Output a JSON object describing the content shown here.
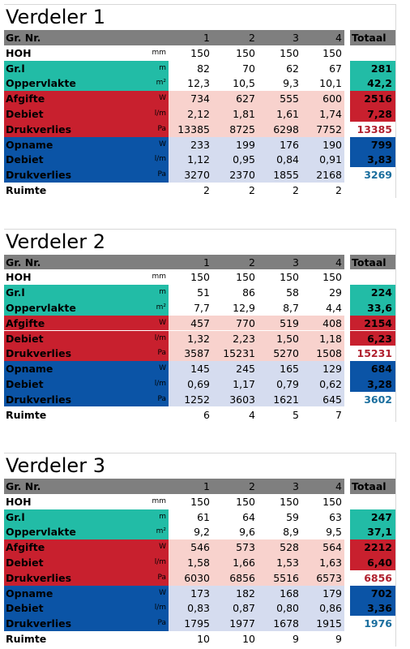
{
  "tables": [
    {
      "title": "Verdeler 1",
      "header": [
        "Gr. Nr.",
        "1",
        "2",
        "3",
        "4",
        "Totaal"
      ],
      "rows": [
        {
          "label": "HOH",
          "unit": "mm",
          "values": [
            "150",
            "150",
            "150",
            "150"
          ]
        },
        {
          "label": "Gr.l",
          "unit": "m",
          "values": [
            "82",
            "70",
            "62",
            "67"
          ],
          "total": "281"
        },
        {
          "label": "Oppervlakte",
          "unit": "m²",
          "values": [
            "12,3",
            "10,5",
            "9,3",
            "10,1"
          ],
          "total": "42,2"
        },
        {
          "label": "Afgifte",
          "unit": "W",
          "values": [
            "734",
            "627",
            "555",
            "600"
          ],
          "total": "2516"
        },
        {
          "label": "Debiet",
          "unit": "l/m",
          "values": [
            "2,12",
            "1,81",
            "1,61",
            "1,74"
          ],
          "total": "7,28"
        },
        {
          "label": "Drukverlies",
          "unit": "Pa",
          "values": [
            "13385",
            "8725",
            "6298",
            "7752"
          ],
          "total": "13385"
        },
        {
          "label": "Opname",
          "unit": "W",
          "values": [
            "233",
            "199",
            "176",
            "190"
          ],
          "total": "799"
        },
        {
          "label": "Debiet",
          "unit": "l/m",
          "values": [
            "1,12",
            "0,95",
            "0,84",
            "0,91"
          ],
          "total": "3,83"
        },
        {
          "label": "Drukverlies",
          "unit": "Pa",
          "values": [
            "3270",
            "2370",
            "1855",
            "2168"
          ],
          "total": "3269"
        },
        {
          "label": "Ruimte",
          "values": [
            "2",
            "2",
            "2",
            "2"
          ]
        }
      ]
    },
    {
      "title": "Verdeler 2",
      "header": [
        "Gr. Nr.",
        "1",
        "2",
        "3",
        "4",
        "Totaal"
      ],
      "rows": [
        {
          "label": "HOH",
          "unit": "mm",
          "values": [
            "150",
            "150",
            "150",
            "150"
          ]
        },
        {
          "label": "Gr.l",
          "unit": "m",
          "values": [
            "51",
            "86",
            "58",
            "29"
          ],
          "total": "224"
        },
        {
          "label": "Oppervlakte",
          "unit": "m²",
          "values": [
            "7,7",
            "12,9",
            "8,7",
            "4,4"
          ],
          "total": "33,6"
        },
        {
          "label": "Afgifte",
          "unit": "W",
          "values": [
            "457",
            "770",
            "519",
            "408"
          ],
          "total": "2154"
        },
        {
          "label": "Debiet",
          "unit": "l/m",
          "values": [
            "1,32",
            "2,23",
            "1,50",
            "1,18"
          ],
          "total": "6,23"
        },
        {
          "label": "Drukverlies",
          "unit": "Pa",
          "values": [
            "3587",
            "15231",
            "5270",
            "1508"
          ],
          "total": "15231"
        },
        {
          "label": "Opname",
          "unit": "W",
          "values": [
            "145",
            "245",
            "165",
            "129"
          ],
          "total": "684"
        },
        {
          "label": "Debiet",
          "unit": "l/m",
          "values": [
            "0,69",
            "1,17",
            "0,79",
            "0,62"
          ],
          "total": "3,28"
        },
        {
          "label": "Drukverlies",
          "unit": "Pa",
          "values": [
            "1252",
            "3603",
            "1621",
            "645"
          ],
          "total": "3602"
        },
        {
          "label": "Ruimte",
          "values": [
            "6",
            "4",
            "5",
            "7"
          ]
        }
      ]
    },
    {
      "title": "Verdeler 3",
      "header": [
        "Gr. Nr.",
        "1",
        "2",
        "3",
        "4",
        "Totaal"
      ],
      "rows": [
        {
          "label": "HOH",
          "unit": "mm",
          "values": [
            "150",
            "150",
            "150",
            "150"
          ]
        },
        {
          "label": "Gr.l",
          "unit": "m",
          "values": [
            "61",
            "64",
            "59",
            "63"
          ],
          "total": "247"
        },
        {
          "label": "Oppervlakte",
          "unit": "m²",
          "values": [
            "9,2",
            "9,6",
            "8,9",
            "9,5"
          ],
          "total": "37,1"
        },
        {
          "label": "Afgifte",
          "unit": "W",
          "values": [
            "546",
            "573",
            "528",
            "564"
          ],
          "total": "2212"
        },
        {
          "label": "Debiet",
          "unit": "l/m",
          "values": [
            "1,58",
            "1,66",
            "1,53",
            "1,63"
          ],
          "total": "6,40"
        },
        {
          "label": "Drukverlies",
          "unit": "Pa",
          "values": [
            "6030",
            "6856",
            "5516",
            "6573"
          ],
          "total": "6856"
        },
        {
          "label": "Opname",
          "unit": "W",
          "values": [
            "173",
            "182",
            "168",
            "179"
          ],
          "total": "702"
        },
        {
          "label": "Debiet",
          "unit": "l/m",
          "values": [
            "0,83",
            "0,87",
            "0,80",
            "0,86"
          ],
          "total": "3,36"
        },
        {
          "label": "Drukverlies",
          "unit": "Pa",
          "values": [
            "1795",
            "1977",
            "1678",
            "1915"
          ],
          "total": "1976"
        },
        {
          "label": "Ruimte",
          "values": [
            "10",
            "10",
            "9",
            "9"
          ]
        }
      ]
    }
  ]
}
